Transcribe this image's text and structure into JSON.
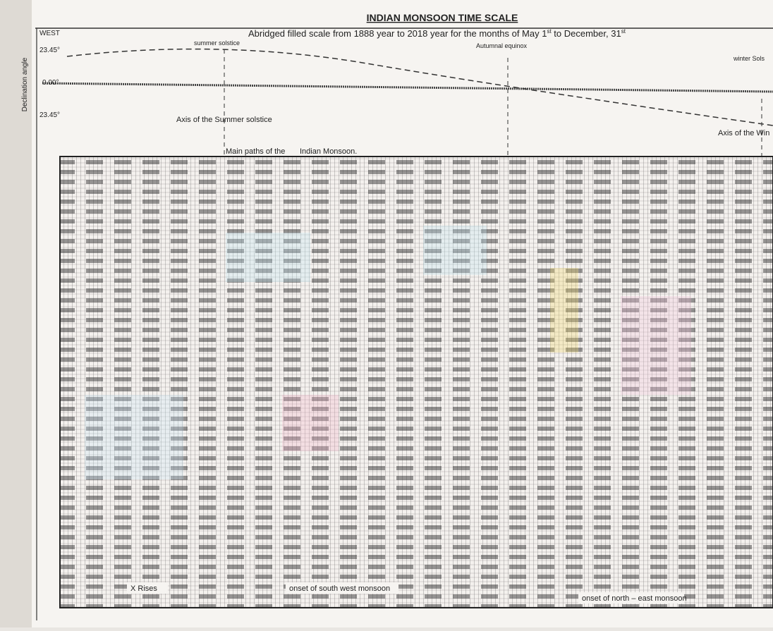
{
  "header": {
    "title": "INDIAN MONSOON TIME SCALE",
    "subtitle": {
      "text": "Abridged filled scale from 1888 year to 2018 year for the months of May 1",
      "sup1": "st",
      "middle": " to December, 31",
      "sup2": "st"
    }
  },
  "declination": {
    "direction": "WEST",
    "axis_label": "Declination angle",
    "ticks": [
      "23.45°",
      "0.00°",
      "23.45°"
    ]
  },
  "events": {
    "summer": "summer solstice",
    "autumn": "Autumnal equinox",
    "winter": "winter Sols"
  },
  "axes": {
    "summer": "Axis of the Summer solstice",
    "winter": "Axis of the Win"
  },
  "paths": {
    "label1": "Main paths of the",
    "label2": "Indian Monsoon."
  },
  "footer": {
    "rises": "X Rises",
    "south_west": "onset of south west monsoon",
    "north_east": "onset of north – east monsoon"
  }
}
